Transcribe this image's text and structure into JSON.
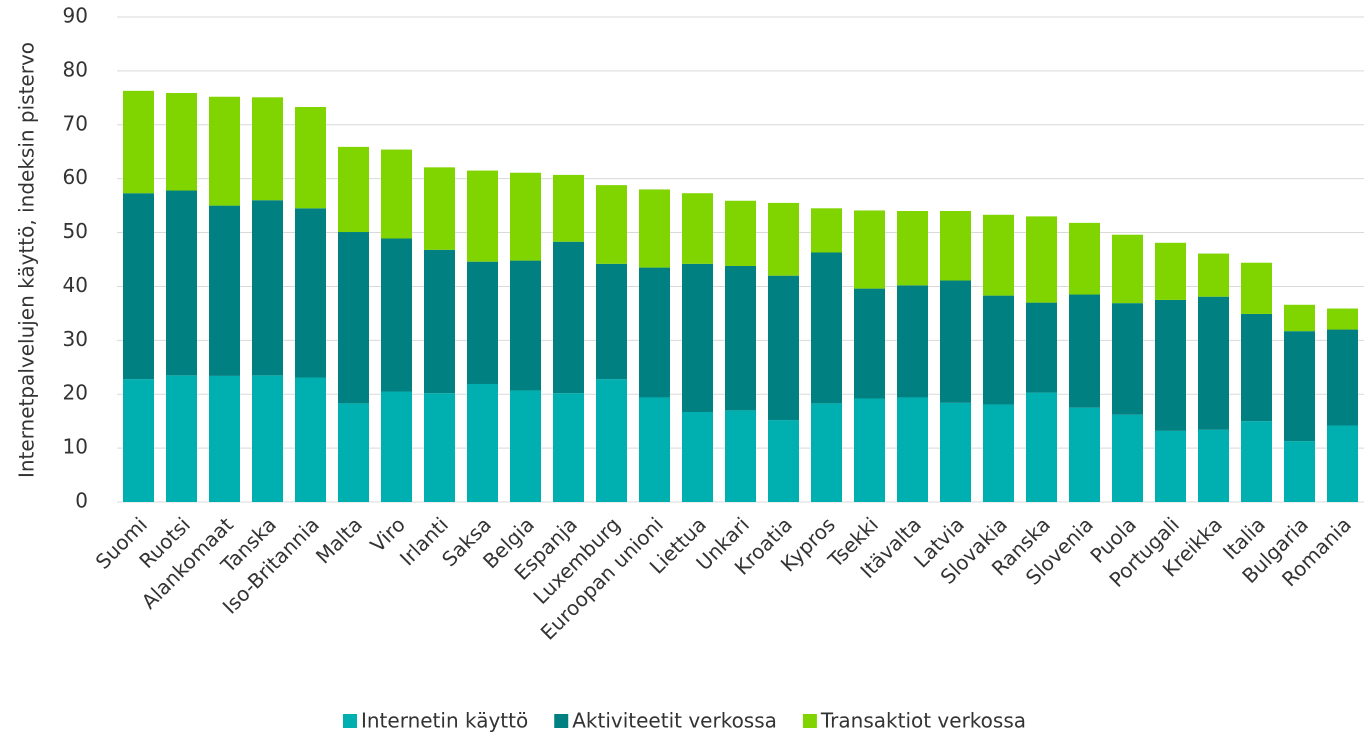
{
  "chart_data": {
    "type": "stacked_bar",
    "y_label": "Internetpalvelujen käyttö, indeksin pistervo",
    "categories": [
      "Suomi",
      "Ruotsi",
      "Alankomaat",
      "Tanska",
      "Iso-Britannia",
      "Malta",
      "Viro",
      "Irlanti",
      "Saksa",
      "Belgia",
      "Espanja",
      "Luxemburg",
      "Euroopan unioni",
      "Liettua",
      "Unkari",
      "Kroatia",
      "Kypros",
      "Tsekki",
      "Itävalta",
      "Latvia",
      "Slovakia",
      "Ranska",
      "Slovenia",
      "Puola",
      "Portugali",
      "Kreikka",
      "Italia",
      "Bulgaria",
      "Romania"
    ],
    "series": [
      {
        "name": "Internetin käyttö",
        "color": "#00b0b0",
        "values": [
          22.8,
          23.5,
          23.4,
          23.5,
          23.1,
          18.3,
          20.5,
          20.2,
          21.9,
          20.7,
          20.2,
          22.8,
          19.4,
          16.7,
          17.0,
          15.2,
          18.3,
          19.2,
          19.4,
          18.4,
          18.1,
          20.3,
          17.5,
          16.2,
          13.2,
          13.4,
          15.0,
          11.3,
          14.2
        ]
      },
      {
        "name": "Aktiviteetit verkossa",
        "color": "#008080",
        "values": [
          34.5,
          34.3,
          31.6,
          32.5,
          31.4,
          31.8,
          28.4,
          26.6,
          22.7,
          24.1,
          28.1,
          21.4,
          24.1,
          27.5,
          26.8,
          26.8,
          28.0,
          20.4,
          20.8,
          22.7,
          20.2,
          16.7,
          21.0,
          20.7,
          24.3,
          24.7,
          19.9,
          20.4,
          17.8
        ]
      },
      {
        "name": "Transaktiot verkossa",
        "color": "#80d400",
        "values": [
          19.0,
          18.1,
          20.2,
          19.1,
          18.8,
          15.8,
          16.5,
          15.3,
          16.9,
          16.3,
          12.4,
          14.6,
          14.5,
          13.1,
          12.1,
          13.5,
          8.2,
          14.5,
          13.8,
          12.9,
          15.0,
          16.0,
          13.3,
          12.7,
          10.6,
          8.0,
          9.5,
          4.9,
          3.9
        ]
      }
    ],
    "ylim": [
      0,
      90
    ],
    "yticks": [
      0,
      10,
      20,
      30,
      40,
      50,
      60,
      70,
      80,
      90
    ],
    "grid": true,
    "legend": "bottom"
  }
}
